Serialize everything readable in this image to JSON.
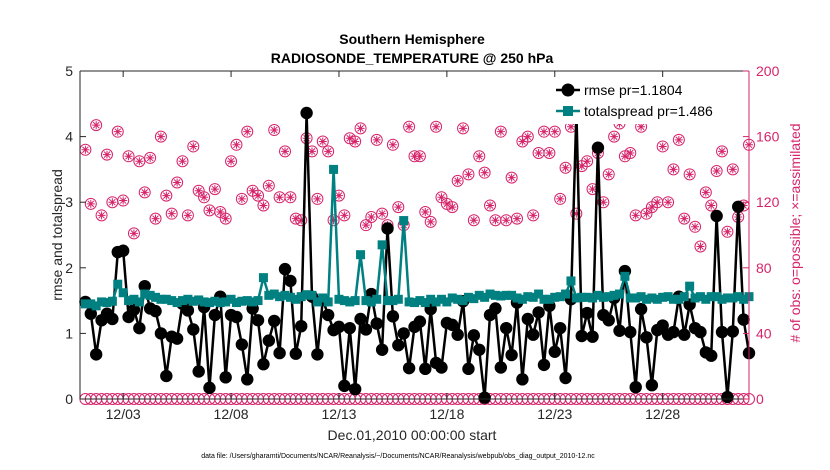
{
  "chart_data": {
    "type": "line",
    "title": "Southern Hemisphere",
    "subtitle": "RADIOSONDE_TEMPERATURE @ 250 hPa",
    "xlabel": "Dec.01,2010 00:00:00 start",
    "ylabel_left": "rmse and totalspread",
    "ylabel_right": "# of obs: o=possible; ×=assimilated",
    "footnote": "data file: /Users/gharamti/Documents/NCAR/Reanalysis/~/Documents/NCAR/Reanalysis/webpub/obs_diag_output_2010-12.nc",
    "xlim": [
      0,
      31
    ],
    "ylim_left": [
      0,
      5
    ],
    "ylim_right": [
      0,
      200
    ],
    "x_ticks": [
      {
        "x": 2,
        "label": "12/03"
      },
      {
        "x": 7,
        "label": "12/08"
      },
      {
        "x": 12,
        "label": "12/13"
      },
      {
        "x": 17,
        "label": "12/18"
      },
      {
        "x": 22,
        "label": "12/23"
      },
      {
        "x": 27,
        "label": "12/28"
      }
    ],
    "y_ticks_left": [
      "0",
      "1",
      "2",
      "3",
      "4",
      "5"
    ],
    "y_ticks_right": [
      "0",
      "40",
      "80",
      "120",
      "160",
      "200"
    ],
    "colors": {
      "rmse": "#000000",
      "totalspread": "#008080",
      "obs": "#d6246b",
      "axis": "#262626"
    },
    "legend_position": "top-right",
    "series": [
      {
        "name": "rmse pr=1.1804",
        "axis": "left",
        "x_step": 0.25,
        "x_start": 0.25,
        "values": [
          1.48,
          1.3,
          0.68,
          1.2,
          1.3,
          1.22,
          2.24,
          2.26,
          1.25,
          1.36,
          1.08,
          1.72,
          1.38,
          1.34,
          1.0,
          0.35,
          0.95,
          0.92,
          1.45,
          1.35,
          1.06,
          0.42,
          1.4,
          0.17,
          1.28,
          1.56,
          0.33,
          1.28,
          1.25,
          0.83,
          0.3,
          1.38,
          1.2,
          0.53,
          0.89,
          1.19,
          0.7,
          1.98,
          1.8,
          0.69,
          1.11,
          4.36,
          1.56,
          0.68,
          1.51,
          1.28,
          1.05,
          1.1,
          0.2,
          1.08,
          0.15,
          1.22,
          1.06,
          1.6,
          1.15,
          0.75,
          2.6,
          1.26,
          0.82,
          1.0,
          0.47,
          1.1,
          1.18,
          0.46,
          1.37,
          0.55,
          0.48,
          1.16,
          1.13,
          0.98,
          1.49,
          0.46,
          0.97,
          0.75,
          0.02,
          1.28,
          1.38,
          0.48,
          1.08,
          0.67,
          1.47,
          0.3,
          1.22,
          0.98,
          1.32,
          0.52,
          1.42,
          0.72,
          1.08,
          0.32,
          1.52,
          4.39,
          0.96,
          1.31,
          0.95,
          3.83,
          1.28,
          1.2,
          1.54,
          1.04,
          1.95,
          1.02,
          0.18,
          1.37,
          0.94,
          0.21,
          1.05,
          1.12,
          0.98,
          1.02,
          1.56,
          0.98,
          1.44,
          1.08,
          1.02,
          0.71,
          0.66,
          2.79,
          1.02,
          0.03,
          1.03,
          2.93,
          1.21,
          0.7
        ],
        "note": ""
      },
      {
        "name": "totalspread pr=1.486",
        "axis": "left",
        "x_step": 0.25,
        "x_start": 0.25,
        "values": [
          1.45,
          1.45,
          1.42,
          1.48,
          1.47,
          1.49,
          1.75,
          1.62,
          1.5,
          1.52,
          1.48,
          1.6,
          1.58,
          1.55,
          1.52,
          1.52,
          1.5,
          1.47,
          1.5,
          1.52,
          1.49,
          1.51,
          1.48,
          1.47,
          1.49,
          1.47,
          1.48,
          1.52,
          1.47,
          1.49,
          1.5,
          1.48,
          1.5,
          1.85,
          1.58,
          1.6,
          1.56,
          1.58,
          1.55,
          1.52,
          1.56,
          1.59,
          1.58,
          1.48,
          1.54,
          1.48,
          3.5,
          1.52,
          1.5,
          1.48,
          1.5,
          2.2,
          1.5,
          1.48,
          1.52,
          2.35,
          1.5,
          1.5,
          1.52,
          2.72,
          1.48,
          1.47,
          1.5,
          1.47,
          1.52,
          1.48,
          1.52,
          1.48,
          1.54,
          1.52,
          1.5,
          1.55,
          1.53,
          1.58,
          1.55,
          1.6,
          1.58,
          1.57,
          1.58,
          1.58,
          1.54,
          1.52,
          1.56,
          1.55,
          1.6,
          1.52,
          1.52,
          1.55,
          1.56,
          1.6,
          1.8,
          1.54,
          1.55,
          1.55,
          1.54,
          1.58,
          1.55,
          1.56,
          1.58,
          1.6,
          1.87,
          1.54,
          1.54,
          1.56,
          1.52,
          1.54,
          1.52,
          1.55,
          1.56,
          1.52,
          1.52,
          1.56,
          1.72,
          1.54,
          1.56,
          1.52,
          1.56,
          1.56,
          1.52,
          1.54,
          1.54,
          1.56,
          1.52,
          1.56
        ],
        "note": ""
      },
      {
        "name": "obs possible",
        "axis": "right",
        "x_step": 0.25,
        "x_start": 0.25,
        "values": [
          152,
          119,
          167,
          112,
          149,
          120,
          163,
          121,
          148,
          101,
          145,
          126,
          147,
          110,
          160,
          124,
          113,
          132,
          145,
          112,
          154,
          127,
          123,
          115,
          128,
          114,
          110,
          145,
          155,
          122,
          163,
          127,
          124,
          118,
          130,
          164,
          123,
          151,
          123,
          110,
          109,
          159,
          151,
          122,
          157,
          151,
          109,
          124,
          112,
          159,
          157,
          165,
          106,
          111,
          158,
          113,
          106,
          155,
          117,
          106,
          166,
          148,
          148,
          114,
          108,
          166,
          123,
          119,
          117,
          133,
          165,
          137,
          109,
          148,
          138,
          118,
          109,
          163,
          109,
          135,
          110,
          157,
          160,
          112,
          150,
          163,
          150,
          163,
          122,
          141,
          166,
          113,
          142,
          145,
          128,
          150,
          120,
          137,
          160,
          168,
          148,
          150,
          112,
          166,
          113,
          117,
          120,
          154,
          120,
          140,
          158,
          110,
          137,
          105,
          93,
          126,
          118,
          139,
          151,
          102,
          140,
          111,
          118,
          155
        ]
      }
    ]
  }
}
